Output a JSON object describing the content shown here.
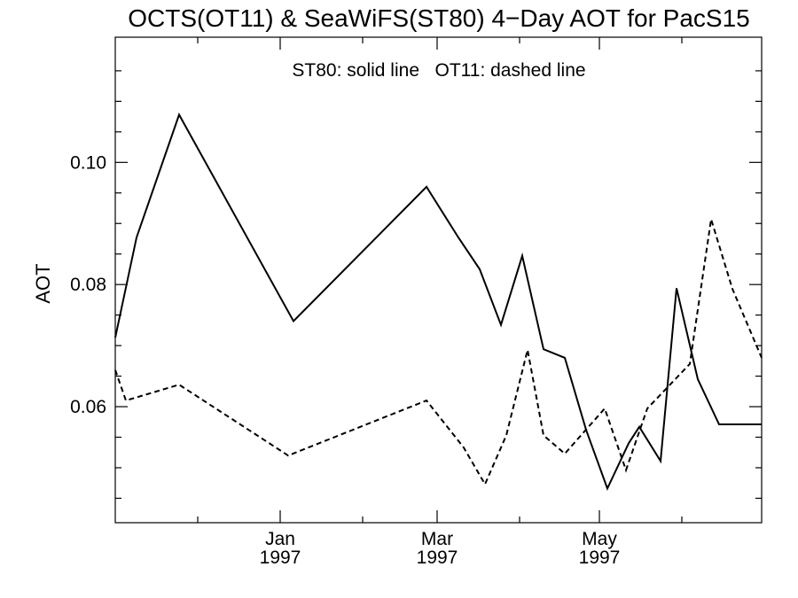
{
  "chart_data": {
    "type": "line",
    "title": "OCTS(OT11) & SeaWiFS(ST80) 4−Day AOT for PacS15",
    "annotation": "ST80: solid line   OT11: dashed line",
    "xlabel": "",
    "ylabel": "AOT",
    "xlim": [
      "1996-10-31",
      "1997-07-01"
    ],
    "ylim": [
      0.041,
      0.1205
    ],
    "y_ticks": [
      0.06,
      0.08,
      0.1
    ],
    "y_tick_labels": [
      "0.06",
      "0.08",
      "0.10"
    ],
    "y_minor_ticks": [
      0.045,
      0.05,
      0.055,
      0.065,
      0.07,
      0.075,
      0.085,
      0.09,
      0.095,
      0.105,
      0.11,
      0.115
    ],
    "x_ticks": [
      {
        "date": "1997-01-01",
        "label": "Jan",
        "sublabel": "1997"
      },
      {
        "date": "1997-03-01",
        "label": "Mar",
        "sublabel": "1997"
      },
      {
        "date": "1997-05-01",
        "label": "May",
        "sublabel": "1997"
      }
    ],
    "x_minor_ticks": [
      "1996-12-01",
      "1997-02-01",
      "1997-04-01",
      "1997-06-01"
    ],
    "grid": false,
    "series": [
      {
        "name": "ST80",
        "style": "solid",
        "color": "#000000",
        "x": [
          "1996-10-31",
          "1996-11-08",
          "1996-11-24",
          "1997-01-06",
          "1997-02-25",
          "1997-03-09",
          "1997-03-17",
          "1997-03-25",
          "1997-04-02",
          "1997-04-10",
          "1997-04-18",
          "1997-04-26",
          "1997-05-04",
          "1997-05-12",
          "1997-05-16",
          "1997-05-24",
          "1997-05-30",
          "1997-06-07",
          "1997-06-15",
          "1997-07-01"
        ],
        "values": [
          0.0713,
          0.0877,
          0.1078,
          0.074,
          0.096,
          0.0877,
          0.0825,
          0.0734,
          0.0847,
          0.0694,
          0.068,
          0.0562,
          0.0466,
          0.054,
          0.0567,
          0.0511,
          0.0794,
          0.0645,
          0.0571,
          0.0571
        ]
      },
      {
        "name": "OT11",
        "style": "dashed",
        "color": "#000000",
        "x": [
          "1996-10-31",
          "1996-11-04",
          "1996-11-24",
          "1997-01-04",
          "1997-02-25",
          "1997-03-11",
          "1997-03-19",
          "1997-03-27",
          "1997-04-04",
          "1997-04-10",
          "1997-04-18",
          "1997-05-03",
          "1997-05-11",
          "1997-05-19",
          "1997-06-04",
          "1997-06-12",
          "1997-06-20",
          "1997-07-01"
        ],
        "values": [
          0.066,
          0.061,
          0.0636,
          0.052,
          0.061,
          0.0533,
          0.0473,
          0.0553,
          0.0693,
          0.0553,
          0.0523,
          0.0597,
          0.0496,
          0.0597,
          0.067,
          0.0907,
          0.0793,
          0.068
        ]
      }
    ]
  }
}
